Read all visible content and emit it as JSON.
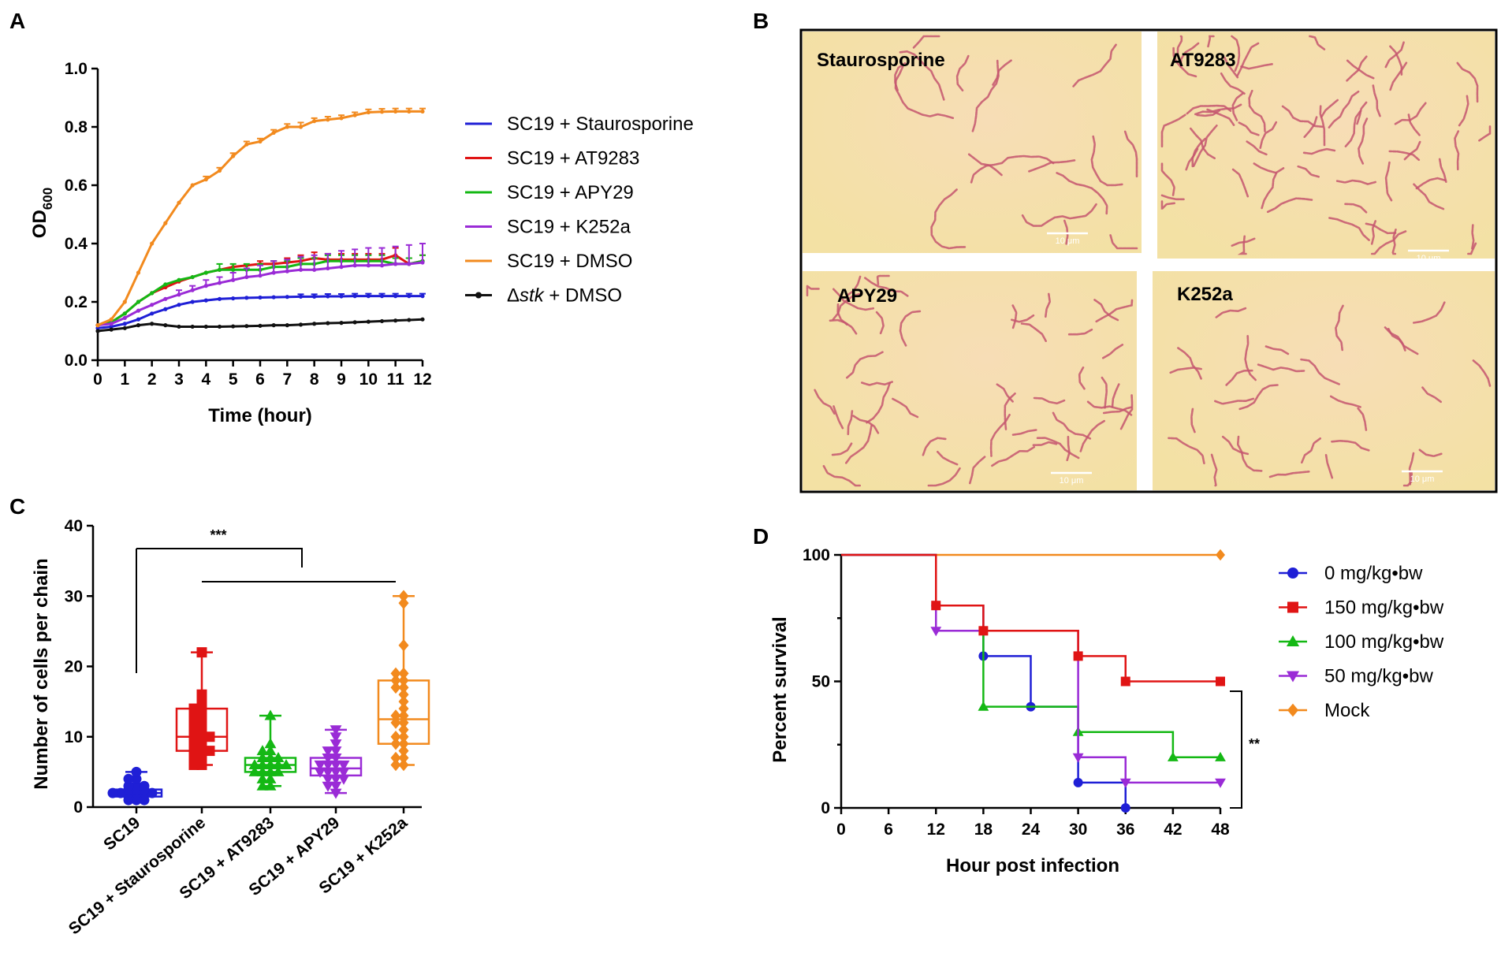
{
  "figure": {
    "panels": [
      {
        "letter": "A"
      },
      {
        "letter": "B"
      },
      {
        "letter": "C"
      },
      {
        "letter": "D"
      }
    ],
    "micrographs": [
      {
        "label": "Staurosporine",
        "scale_text": "10 μm"
      },
      {
        "label": "AT9283",
        "scale_text": "10 μm"
      },
      {
        "label": "APY29",
        "scale_text": "10 μm"
      },
      {
        "label": "K252a",
        "scale_text": "10 μm"
      }
    ]
  },
  "chart_data": [
    {
      "id": "A",
      "type": "line",
      "xlabel": "Time (hour)",
      "ylabel": "OD600",
      "ylabel_main": "OD",
      "ylabel_sub": "600",
      "xlim": [
        0,
        12
      ],
      "ylim": [
        0,
        1.0
      ],
      "xticks": [
        "0",
        "1",
        "2",
        "3",
        "4",
        "5",
        "6",
        "7",
        "8",
        "9",
        "10",
        "11",
        "12"
      ],
      "yticks": [
        "0.0",
        "0.2",
        "0.4",
        "0.6",
        "0.8",
        "1.0"
      ],
      "x": [
        0,
        0.5,
        1,
        1.5,
        2,
        2.5,
        3,
        3.5,
        4,
        4.5,
        5,
        5.5,
        6,
        6.5,
        7,
        7.5,
        8,
        8.5,
        9,
        9.5,
        10,
        10.5,
        11,
        11.5,
        12
      ],
      "series": [
        {
          "name": "SC19 + Staurosporine",
          "color": "#1f1fd6",
          "values": [
            0.11,
            0.115,
            0.125,
            0.14,
            0.16,
            0.175,
            0.19,
            0.2,
            0.205,
            0.21,
            0.212,
            0.214,
            0.215,
            0.216,
            0.217,
            0.218,
            0.218,
            0.219,
            0.219,
            0.22,
            0.22,
            0.22,
            0.22,
            0.22,
            0.22
          ],
          "err": [
            0,
            0,
            0,
            0,
            0,
            0,
            0,
            0,
            0,
            0,
            0,
            0,
            0,
            0,
            0,
            0.008,
            0.008,
            0.008,
            0.008,
            0.008,
            0.008,
            0.008,
            0.008,
            0.008,
            0.008
          ]
        },
        {
          "name": "SC19 + AT9283",
          "color": "#e01414",
          "values": [
            0.12,
            0.13,
            0.16,
            0.2,
            0.23,
            0.25,
            0.27,
            0.285,
            0.3,
            0.31,
            0.32,
            0.325,
            0.33,
            0.33,
            0.335,
            0.34,
            0.35,
            0.345,
            0.345,
            0.345,
            0.345,
            0.345,
            0.36,
            0.33,
            0.34
          ],
          "err": [
            0,
            0,
            0,
            0,
            0,
            0,
            0,
            0,
            0,
            0,
            0,
            0,
            0.01,
            0.01,
            0.015,
            0.02,
            0.02,
            0.02,
            0.02,
            0.02,
            0.02,
            0.02,
            0.025,
            0.02,
            0.02
          ]
        },
        {
          "name": "SC19 + APY29",
          "color": "#14b814",
          "values": [
            0.12,
            0.13,
            0.16,
            0.2,
            0.23,
            0.26,
            0.275,
            0.285,
            0.3,
            0.31,
            0.31,
            0.31,
            0.31,
            0.32,
            0.32,
            0.33,
            0.33,
            0.34,
            0.34,
            0.34,
            0.34,
            0.34,
            0.33,
            0.33,
            0.34
          ],
          "err": [
            0,
            0,
            0,
            0,
            0,
            0,
            0,
            0,
            0,
            0.02,
            0.02,
            0.02,
            0.02,
            0.02,
            0.02,
            0.02,
            0.02,
            0.02,
            0.02,
            0.02,
            0.02,
            0.02,
            0.02,
            0.02,
            0.02
          ]
        },
        {
          "name": "SC19 + K252a",
          "color": "#9a2bd6",
          "values": [
            0.12,
            0.125,
            0.145,
            0.17,
            0.19,
            0.21,
            0.225,
            0.24,
            0.255,
            0.265,
            0.275,
            0.285,
            0.29,
            0.3,
            0.305,
            0.31,
            0.31,
            0.315,
            0.32,
            0.325,
            0.325,
            0.325,
            0.33,
            0.33,
            0.335
          ],
          "err": [
            0,
            0,
            0,
            0,
            0,
            0,
            0.015,
            0.015,
            0.02,
            0.02,
            0.025,
            0.03,
            0.035,
            0.04,
            0.04,
            0.045,
            0.05,
            0.05,
            0.055,
            0.055,
            0.06,
            0.06,
            0.06,
            0.065,
            0.065
          ]
        },
        {
          "name": "SC19 + DMSO",
          "color": "#f28a1e",
          "values": [
            0.12,
            0.14,
            0.2,
            0.3,
            0.4,
            0.47,
            0.54,
            0.6,
            0.62,
            0.65,
            0.7,
            0.74,
            0.75,
            0.78,
            0.8,
            0.8,
            0.82,
            0.825,
            0.83,
            0.84,
            0.85,
            0.852,
            0.853,
            0.853,
            0.853
          ],
          "err": [
            0,
            0,
            0,
            0,
            0,
            0,
            0,
            0,
            0.01,
            0.01,
            0.01,
            0.01,
            0.01,
            0.01,
            0.01,
            0.015,
            0.01,
            0.01,
            0.01,
            0.01,
            0.01,
            0.01,
            0.01,
            0.01,
            0.01
          ]
        },
        {
          "name": "Δstk + DMSO",
          "name_prefix": "Δ",
          "name_italic": "stk",
          "name_rest": " + DMSO",
          "color": "#111111",
          "values": [
            0.1,
            0.105,
            0.11,
            0.12,
            0.125,
            0.12,
            0.115,
            0.115,
            0.115,
            0.115,
            0.116,
            0.117,
            0.118,
            0.12,
            0.12,
            0.122,
            0.125,
            0.127,
            0.128,
            0.13,
            0.132,
            0.134,
            0.136,
            0.138,
            0.14
          ],
          "err": []
        }
      ]
    },
    {
      "id": "C",
      "type": "box",
      "ylabel": "Number of cells per chain",
      "ylim": [
        0,
        40
      ],
      "yticks": [
        "0",
        "10",
        "20",
        "30",
        "40"
      ],
      "significance": "***",
      "groups": [
        {
          "name": "SC19",
          "color": "#1f1fd6",
          "marker": "circle",
          "min": 1,
          "q1": 1.5,
          "median": 2,
          "q3": 2.5,
          "max": 5,
          "points": [
            1,
            1,
            1,
            1.5,
            1.5,
            2,
            2,
            2,
            2,
            2,
            2,
            2.5,
            2.5,
            2.5,
            3,
            3,
            3,
            4,
            4,
            5
          ]
        },
        {
          "name": "SC19 + Staurosporine",
          "color": "#e01414",
          "marker": "square",
          "min": 6,
          "q1": 8,
          "median": 10,
          "q3": 14,
          "max": 22,
          "points": [
            6,
            6,
            7,
            7,
            8,
            8,
            8,
            9,
            9,
            10,
            10,
            10,
            11,
            11,
            12,
            12,
            13,
            13,
            14,
            14,
            15,
            16,
            22
          ]
        },
        {
          "name": "SC19 + AT9283",
          "color": "#14b814",
          "marker": "triangle-up",
          "min": 3,
          "q1": 5,
          "median": 6,
          "q3": 7,
          "max": 13,
          "points": [
            3,
            3,
            4,
            4,
            5,
            5,
            5,
            5,
            6,
            6,
            6,
            6,
            6,
            7,
            7,
            7,
            8,
            8,
            9,
            13
          ]
        },
        {
          "name": "SC19 + APY29",
          "color": "#9a2bd6",
          "marker": "triangle-down",
          "min": 2,
          "q1": 4.5,
          "median": 5.5,
          "q3": 7,
          "max": 11,
          "points": [
            2,
            3,
            3,
            4,
            4,
            4,
            5,
            5,
            5,
            5,
            6,
            6,
            6,
            6,
            7,
            7,
            8,
            8,
            9,
            10,
            11
          ]
        },
        {
          "name": "SC19 + K252a",
          "color": "#f28a1e",
          "marker": "diamond",
          "min": 6,
          "q1": 9,
          "median": 12.5,
          "q3": 18,
          "max": 30,
          "points": [
            6,
            6,
            7,
            7,
            8,
            9,
            9,
            10,
            10,
            11,
            12,
            12,
            13,
            13,
            14,
            15,
            16,
            17,
            17,
            18,
            18,
            19,
            19,
            23,
            29,
            30
          ]
        }
      ]
    },
    {
      "id": "D",
      "type": "line",
      "subtype": "survival",
      "xlabel": "Hour post infection",
      "ylabel": "Percent survival",
      "xlim": [
        0,
        48
      ],
      "ylim": [
        0,
        100
      ],
      "xticks": [
        "0",
        "6",
        "12",
        "18",
        "24",
        "30",
        "36",
        "42",
        "48"
      ],
      "yticks": [
        "0",
        "50",
        "100"
      ],
      "significance": "**",
      "series": [
        {
          "name": "0 mg/kg•bw",
          "color": "#1f1fd6",
          "marker": "circle",
          "points": [
            [
              0,
              100
            ],
            [
              12,
              80
            ],
            [
              18,
              60
            ],
            [
              24,
              40
            ],
            [
              30,
              10
            ],
            [
              36,
              0
            ]
          ],
          "marker_x": [
            12,
            18,
            24,
            30,
            36
          ]
        },
        {
          "name": "150 mg/kg•bw",
          "color": "#e01414",
          "marker": "square",
          "points": [
            [
              0,
              100
            ],
            [
              12,
              80
            ],
            [
              18,
              70
            ],
            [
              30,
              60
            ],
            [
              36,
              50
            ],
            [
              48,
              50
            ]
          ],
          "marker_x": [
            12,
            18,
            30,
            36,
            48
          ]
        },
        {
          "name": "100 mg/kg•bw",
          "color": "#14b814",
          "marker": "triangle-up",
          "points": [
            [
              0,
              100
            ],
            [
              12,
              70
            ],
            [
              18,
              40
            ],
            [
              30,
              30
            ],
            [
              42,
              20
            ],
            [
              48,
              20
            ]
          ],
          "marker_x": [
            18,
            30,
            42,
            48
          ]
        },
        {
          "name": "50 mg/kg•bw",
          "color": "#9a2bd6",
          "marker": "triangle-down",
          "points": [
            [
              0,
              100
            ],
            [
              12,
              70
            ],
            [
              18,
              70
            ],
            [
              30,
              20
            ],
            [
              36,
              10
            ],
            [
              48,
              10
            ]
          ],
          "marker_x": [
            12,
            30,
            36,
            48
          ]
        },
        {
          "name": "Mock",
          "color": "#f28a1e",
          "marker": "diamond",
          "points": [
            [
              0,
              100
            ],
            [
              48,
              100
            ]
          ],
          "marker_x": [
            48
          ]
        }
      ]
    }
  ]
}
